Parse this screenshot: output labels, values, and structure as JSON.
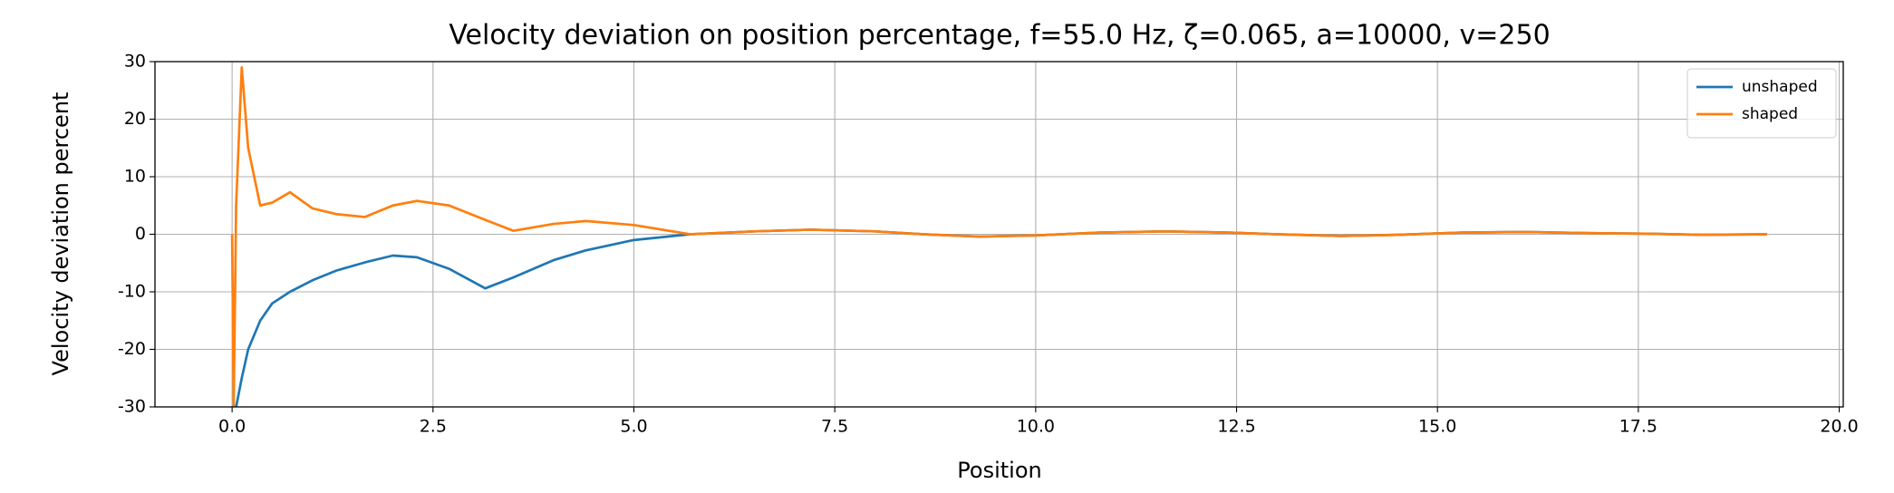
{
  "chart_data": {
    "type": "line",
    "title": "Velocity deviation on position percentage, f=55.0 Hz, ζ=0.065, a=10000, v=250",
    "x_label": "Position",
    "y_label": "Velocity deviation percent",
    "x": [
      0,
      0.02,
      0.05,
      0.12,
      0.2,
      0.35,
      0.5,
      0.72,
      1.0,
      1.3,
      1.65,
      2.0,
      2.3,
      2.7,
      3.15,
      3.5,
      4.0,
      4.4,
      5.0,
      5.7,
      6.5,
      7.2,
      8.0,
      8.6,
      9.3,
      10.0,
      10.8,
      11.6,
      12.4,
      13.0,
      13.8,
      14.5,
      15.3,
      16.1,
      16.9,
      17.6,
      18.3,
      19.1
    ],
    "series": [
      {
        "name": "unshaped",
        "color": "#1f77b4",
        "values": [
          null,
          null,
          -30,
          -25,
          -20,
          -15,
          -12,
          -10,
          -8,
          -6.3,
          -4.9,
          -3.7,
          -4,
          -6,
          -9.4,
          -7.5,
          -4.5,
          -2.8,
          -1,
          0,
          0.5,
          0.8,
          0.5,
          0,
          -0.4,
          -0.2,
          0.3,
          0.5,
          0.3,
          0,
          -0.3,
          -0.1,
          0.3,
          0.4,
          0.2,
          0.1,
          -0.1,
          0
        ]
      },
      {
        "name": "shaped",
        "color": "#ff7f0e",
        "values": [
          0,
          -30,
          5,
          29,
          15,
          5,
          5.5,
          7.3,
          4.5,
          3.5,
          3,
          5,
          5.8,
          5,
          2.5,
          0.6,
          1.8,
          2.3,
          1.6,
          0,
          0.5,
          0.8,
          0.5,
          0,
          -0.4,
          -0.2,
          0.3,
          0.5,
          0.3,
          0,
          -0.3,
          -0.1,
          0.3,
          0.4,
          0.2,
          0.1,
          -0.1,
          0
        ]
      }
    ],
    "xlim": [
      -0.96,
      20.05
    ],
    "xticks": [
      {
        "value": 0,
        "label": "0.0"
      },
      2.5,
      {
        "value": 5,
        "label": "5.0"
      },
      7.5,
      {
        "value": 10,
        "label": "10.0"
      },
      12.5,
      {
        "value": 15,
        "label": "15.0"
      },
      17.5,
      {
        "value": 20,
        "label": "20.0"
      }
    ],
    "ylim": [
      -30,
      30
    ],
    "yticks": [
      -30,
      -20,
      -10,
      0,
      10,
      20,
      30
    ],
    "grid": true,
    "legend": "upper right"
  }
}
